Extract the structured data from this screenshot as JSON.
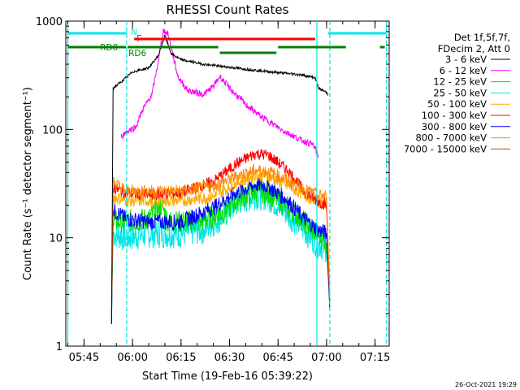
{
  "chart_data": {
    "type": "line",
    "title": "RHESSI Count Rates",
    "xlabel": "Start Time (19-Feb-16 05:39:22)",
    "ylabel": "Count Rate (s⁻¹ detector segment⁻¹)",
    "y_scale": "log",
    "ylim": [
      1,
      1000
    ],
    "xlim": [
      "05:39:22",
      "07:19:22"
    ],
    "x_tick_labels": [
      "05:45",
      "06:00",
      "06:15",
      "06:30",
      "06:45",
      "07:00",
      "07:15"
    ],
    "y_tick_labels": [
      "1",
      "10",
      "100",
      "1000"
    ],
    "grid": false,
    "legend_position": "right",
    "legend_header": [
      "Det 1f,5f,7f,",
      "FDecim 2, Att 0"
    ],
    "series": [
      {
        "name": "3 - 6 keV",
        "color": "#000000",
        "points": [
          [
            "05:53:30",
            1.6
          ],
          [
            "05:54:00",
            240
          ],
          [
            "05:58:00",
            300
          ],
          [
            "06:00:00",
            340
          ],
          [
            "06:05:00",
            370
          ],
          [
            "06:08:00",
            480
          ],
          [
            "06:10:00",
            740
          ],
          [
            "06:12:00",
            500
          ],
          [
            "06:15:00",
            440
          ],
          [
            "06:22:00",
            400
          ],
          [
            "06:30:00",
            375
          ],
          [
            "06:37:00",
            355
          ],
          [
            "06:45:00",
            335
          ],
          [
            "06:52:00",
            320
          ],
          [
            "06:56:30",
            300
          ],
          [
            "06:57:30",
            240
          ],
          [
            "07:00:00",
            220
          ],
          [
            "07:00:30",
            210
          ]
        ]
      },
      {
        "name": "6 - 12 keV",
        "color": "#ff00ff",
        "points": [
          [
            "05:56:30",
            85
          ],
          [
            "05:58:00",
            95
          ],
          [
            "06:01:00",
            105
          ],
          [
            "06:03:00",
            150
          ],
          [
            "06:06:00",
            210
          ],
          [
            "06:08:00",
            430
          ],
          [
            "06:09:30",
            820
          ],
          [
            "06:11:00",
            760
          ],
          [
            "06:14:00",
            310
          ],
          [
            "06:17:00",
            230
          ],
          [
            "06:22:00",
            210
          ],
          [
            "06:25:00",
            250
          ],
          [
            "06:27:00",
            310
          ],
          [
            "06:30:00",
            240
          ],
          [
            "06:35:00",
            170
          ],
          [
            "06:40:00",
            130
          ],
          [
            "06:46:00",
            100
          ],
          [
            "06:52:00",
            80
          ],
          [
            "06:56:00",
            72
          ],
          [
            "06:57:30",
            55
          ]
        ]
      },
      {
        "name": "12 - 25 keV",
        "color": "#00dd00",
        "points": [
          [
            "05:53:30",
            1.8
          ],
          [
            "05:54:00",
            14
          ],
          [
            "05:58:00",
            14
          ],
          [
            "06:05:00",
            15
          ],
          [
            "06:09:00",
            20
          ],
          [
            "06:11:00",
            14
          ],
          [
            "06:20:00",
            14
          ],
          [
            "06:28:00",
            17
          ],
          [
            "06:33:00",
            23
          ],
          [
            "06:38:00",
            27
          ],
          [
            "06:42:00",
            26
          ],
          [
            "06:47:00",
            20
          ],
          [
            "06:52:00",
            15
          ],
          [
            "06:57:00",
            11
          ],
          [
            "07:00:00",
            9
          ],
          [
            "07:01:00",
            2.2
          ]
        ]
      },
      {
        "name": "25 - 50 keV",
        "color": "#00e5e5",
        "points": [
          [
            "05:53:30",
            1.8
          ],
          [
            "05:54:00",
            11
          ],
          [
            "05:58:00",
            10
          ],
          [
            "06:05:00",
            11
          ],
          [
            "06:15:00",
            11
          ],
          [
            "06:22:00",
            12
          ],
          [
            "06:28:00",
            16
          ],
          [
            "06:33:00",
            22
          ],
          [
            "06:38:00",
            25
          ],
          [
            "06:42:00",
            24
          ],
          [
            "06:47:00",
            18
          ],
          [
            "06:52:00",
            13
          ],
          [
            "06:57:00",
            9
          ],
          [
            "07:00:00",
            8
          ],
          [
            "07:01:00",
            2.5
          ]
        ]
      },
      {
        "name": "50 - 100 keV",
        "color": "#ffaa00",
        "points": [
          [
            "05:53:30",
            1.9
          ],
          [
            "05:54:00",
            24
          ],
          [
            "05:58:00",
            22
          ],
          [
            "06:05:00",
            22
          ],
          [
            "06:15:00",
            22
          ],
          [
            "06:25:00",
            24
          ],
          [
            "06:32:00",
            32
          ],
          [
            "06:38:00",
            38
          ],
          [
            "06:42:00",
            37
          ],
          [
            "06:48:00",
            30
          ],
          [
            "06:53:00",
            25
          ],
          [
            "06:57:00",
            22
          ],
          [
            "07:00:00",
            20
          ],
          [
            "07:01:00",
            2.5
          ]
        ]
      },
      {
        "name": "100 - 300 keV",
        "color": "#ff0000",
        "points": [
          [
            "05:53:30",
            2
          ],
          [
            "05:54:00",
            29
          ],
          [
            "05:58:00",
            26
          ],
          [
            "06:05:00",
            25
          ],
          [
            "06:15:00",
            26
          ],
          [
            "06:25:00",
            33
          ],
          [
            "06:32:00",
            48
          ],
          [
            "06:38:00",
            60
          ],
          [
            "06:42:00",
            58
          ],
          [
            "06:48:00",
            42
          ],
          [
            "06:53:00",
            27
          ],
          [
            "06:57:00",
            22
          ],
          [
            "07:00:00",
            20
          ],
          [
            "07:01:00",
            2.6
          ]
        ]
      },
      {
        "name": "300 - 800 keV",
        "color": "#0000ff",
        "points": [
          [
            "05:53:30",
            1.6
          ],
          [
            "05:54:00",
            18
          ],
          [
            "05:58:00",
            15
          ],
          [
            "06:05:00",
            14
          ],
          [
            "06:15:00",
            14
          ],
          [
            "06:25:00",
            19
          ],
          [
            "06:32:00",
            26
          ],
          [
            "06:38:00",
            31
          ],
          [
            "06:42:00",
            30
          ],
          [
            "06:48:00",
            22
          ],
          [
            "06:53:00",
            15
          ],
          [
            "06:57:00",
            12
          ],
          [
            "07:00:00",
            11
          ],
          [
            "07:01:00",
            2.2
          ]
        ]
      },
      {
        "name": "800 - 7000 keV",
        "color": "#ff8800",
        "points": [
          [
            "05:53:30",
            2.1
          ],
          [
            "05:54:00",
            33
          ],
          [
            "05:58:00",
            27
          ],
          [
            "06:05:00",
            27
          ],
          [
            "06:15:00",
            27
          ],
          [
            "06:25:00",
            30
          ],
          [
            "06:32:00",
            37
          ],
          [
            "06:38:00",
            42
          ],
          [
            "06:42:00",
            41
          ],
          [
            "06:48:00",
            34
          ],
          [
            "06:53:00",
            28
          ],
          [
            "06:57:00",
            25
          ],
          [
            "07:00:00",
            24
          ],
          [
            "07:01:00",
            3
          ]
        ]
      },
      {
        "name": "7000 - 15000 keV",
        "color": "#aa5500",
        "points": []
      }
    ],
    "annotations": {
      "N": {
        "label": "N",
        "color": "#00e5e5",
        "bars": [
          [
            "05:40:00",
            "05:58:10"
          ],
          [
            "07:00:30",
            "07:18:30"
          ]
        ]
      },
      "F": {
        "label": "F",
        "color": "#ff0000",
        "bars": [
          [
            "06:00:30",
            "06:56:30"
          ]
        ]
      },
      "RD": {
        "labels": [
          "RD0",
          "RD6"
        ],
        "color": "#008000",
        "bars": [
          [
            "05:40:00",
            "05:58:00"
          ],
          [
            "05:58:30",
            "06:26:30"
          ],
          [
            "06:27:00",
            "06:44:30"
          ],
          [
            "06:45:00",
            "07:06:00"
          ],
          [
            "07:16:30",
            "07:18:00"
          ]
        ]
      },
      "vlines": [
        {
          "time": "05:40:00",
          "color": "#00e5e5",
          "style": "solid"
        },
        {
          "time": "05:58:10",
          "color": "#00e5e5",
          "style": "dashed"
        },
        {
          "time": "06:57:00",
          "color": "#00e5e5",
          "style": "solid"
        },
        {
          "time": "07:01:00",
          "color": "#00e5e5",
          "style": "dashed"
        },
        {
          "time": "07:18:30",
          "color": "#00e5e5",
          "style": "dashed"
        }
      ]
    }
  },
  "footer": {
    "stamp": "26-Oct-2021 19:29"
  }
}
